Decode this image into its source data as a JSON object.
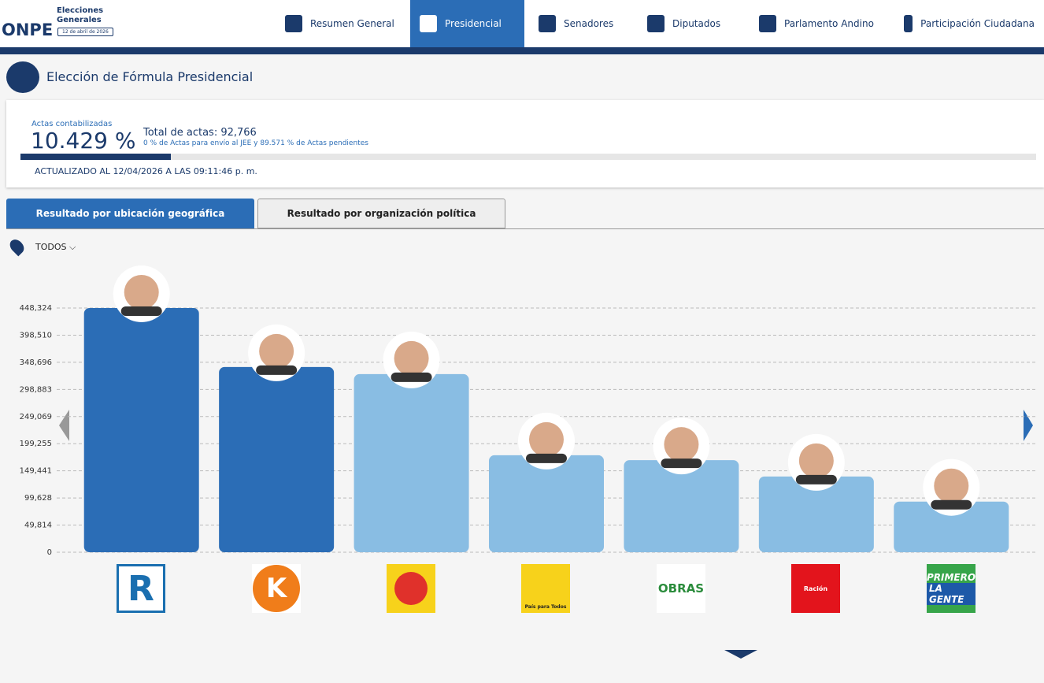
{
  "header": {
    "logo": "ONPE",
    "title_1": "Elecciones",
    "title_2": "Generales",
    "date": "12 de abril de 2026"
  },
  "nav": [
    "Resumen General",
    "Presidencial",
    "Senadores",
    "Diputados",
    "Parlamento Andino",
    "Participación Ciudadana"
  ],
  "page_title": "Elección de Fórmula Presidencial",
  "summary": {
    "actas_label": "Actas contabilizadas",
    "actas_pct": "10.429 %",
    "total": "Total de actas: 92,766",
    "note": "0 % de Actas para envío al JEE y 89.571 % de Actas pendientes",
    "updated": "ACTUALIZADO AL 12/04/2026 A LAS 09:11:46 p. m."
  },
  "tabs": [
    "Resultado por ubicación geográfica",
    "Resultado por organización política"
  ],
  "filter": "TODOS",
  "party_logos": [
    "R",
    "K",
    "OBRAS",
    "Ración",
    "PRIMERO",
    "LA GENTE",
    "País para Todos"
  ],
  "chart_data": {
    "type": "bar",
    "categories": [
      null,
      null,
      null,
      null,
      null,
      null,
      null
    ],
    "values": [
      448324,
      340000,
      327000,
      178000,
      169000,
      139000,
      93000
    ],
    "colors": [
      "#2b6db6",
      "#2b6db6",
      "#89bde3",
      "#89bde3",
      "#89bde3",
      "#89bde3",
      "#89bde3"
    ],
    "ylim": [
      0,
      448324
    ],
    "yticks": [
      0,
      {
        "value": 49814,
        "label": "49,814"
      },
      {
        "value": 99628,
        "label": "99,628"
      },
      {
        "value": 149441,
        "label": "149,441"
      },
      {
        "value": 199255,
        "label": "199,255"
      },
      {
        "value": 249069,
        "label": "249,069"
      },
      {
        "value": 298883,
        "label": "298,883"
      },
      {
        "value": 348696,
        "label": "348,696"
      },
      {
        "value": 398510,
        "label": "398,510"
      },
      {
        "value": 448324,
        "label": "448,324"
      }
    ],
    "grid": true
  }
}
